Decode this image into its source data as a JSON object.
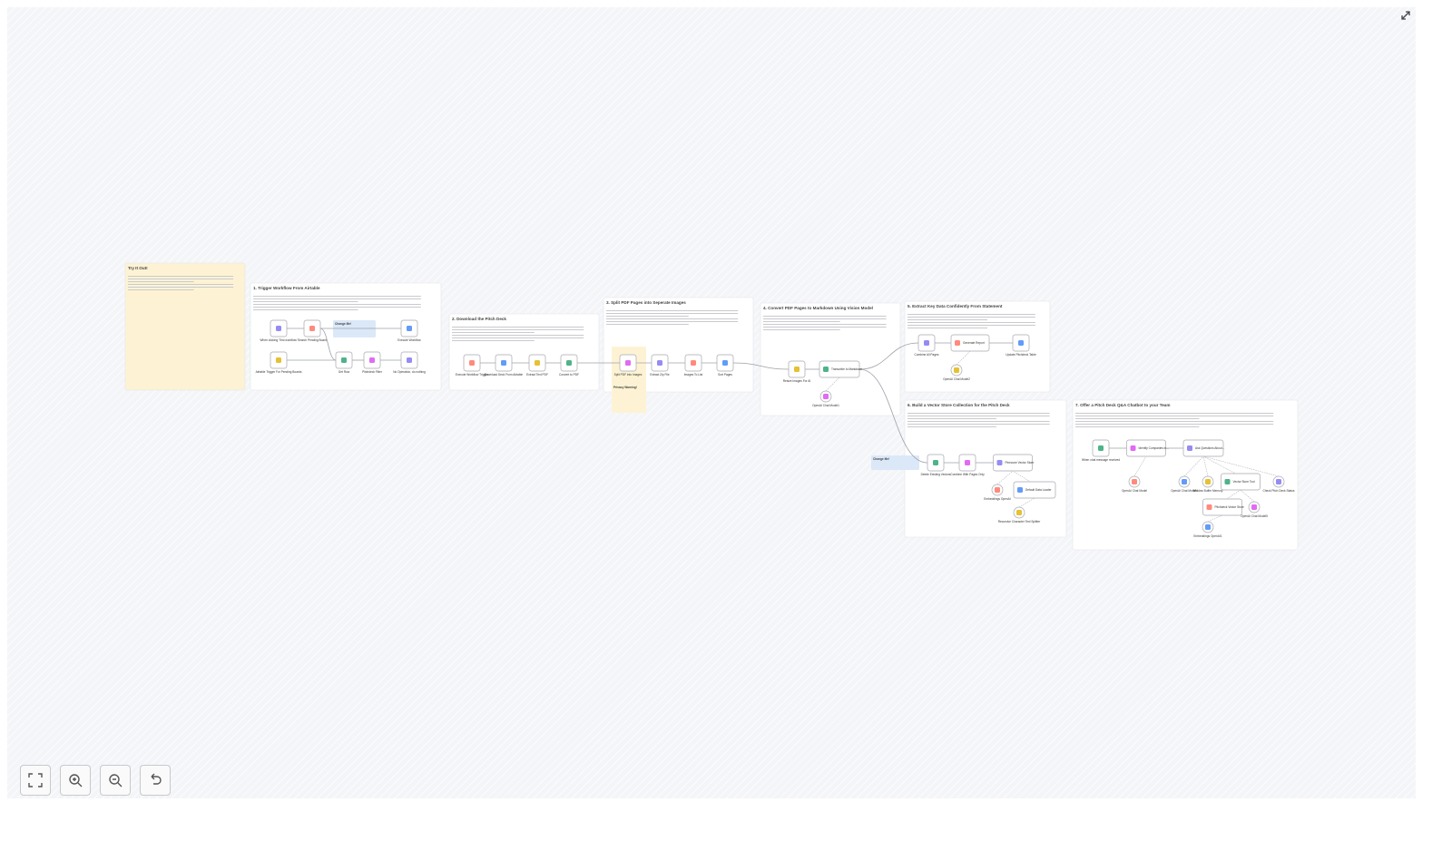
{
  "canvas": {
    "notes": [
      {
        "title": "Try It Out!"
      },
      {
        "title": "1. Trigger Workflow From Airtable"
      },
      {
        "title": "2. Download the Pitch Deck"
      },
      {
        "title": "3. Split PDF Pages into Seperate Images"
      },
      {
        "title": "4. Convert PDF Pages to Markdown Using Vision Model"
      },
      {
        "title": "5. Extract Key Data Confidently From Statement"
      },
      {
        "title": "6. Build a Vector Store Collection for the Pitch Deck"
      },
      {
        "title": "7. Offer a Pitch Deck Q&A Chatbot to your Team"
      }
    ],
    "small_notes": [
      {
        "title": "Change Me!"
      },
      {
        "title": "Privacy Warning!"
      },
      {
        "title": "Change Me!"
      }
    ],
    "nodes": [
      {
        "label": "When clicking 'Test workflow'"
      },
      {
        "label": "Search Pending Board"
      },
      {
        "label": "Execute Workflow"
      },
      {
        "label": "Airtable Trigger For Pending Boards"
      },
      {
        "label": "Get Row"
      },
      {
        "label": "Pitchdeck Filter"
      },
      {
        "label": "No Operation, do nothing"
      },
      {
        "label": "Execute Workflow Trigger"
      },
      {
        "label": "Download Deck From Airtable"
      },
      {
        "label": "Extract Text PDF"
      },
      {
        "label": "Convert to PDF"
      },
      {
        "label": "Split PDF into Images"
      },
      {
        "label": "Extract Zip File"
      },
      {
        "label": "Images To List"
      },
      {
        "label": "Sort Pages"
      },
      {
        "label": "Resize Images For AI"
      },
      {
        "label": "Transcribe to Markdown"
      },
      {
        "label": "OpenAI Chat Model1"
      },
      {
        "label": "Combine All Pages"
      },
      {
        "label": "Generate Report"
      },
      {
        "label": "Update Pitchdeck Table"
      },
      {
        "label": "OpenAI Chat Model2"
      },
      {
        "label": "Delete Existing Vectors"
      },
      {
        "label": "Combine With Pages Only"
      },
      {
        "label": "Pinecone Vector Store"
      },
      {
        "label": "Embeddings OpenAI"
      },
      {
        "label": "Default Data Loader"
      },
      {
        "label": "Recursive Character Text Splitter"
      },
      {
        "label": "When chat message received"
      },
      {
        "label": "Identify Companies in..."
      },
      {
        "label": "Ask Questions About..."
      },
      {
        "label": "OpenAI Chat Model"
      },
      {
        "label": "OpenAI Chat Model4"
      },
      {
        "label": "Window Buffer Memory"
      },
      {
        "label": "Vector Store Tool"
      },
      {
        "label": "OpenAI Chat Model5"
      },
      {
        "label": "Check Pitch Deck Status"
      },
      {
        "label": "Pitchdeck Vector Store"
      },
      {
        "label": "Embeddings OpenAI1"
      }
    ]
  }
}
